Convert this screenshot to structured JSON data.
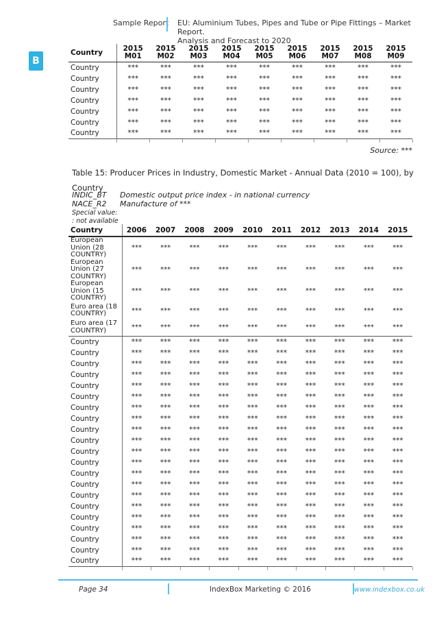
{
  "header": {
    "left_label": "Sample Report",
    "title_line1": "EU: Aluminium Tubes, Pipes and Tube or Pipe Fittings – Market Report.",
    "title_line2": "Analysis and Forecast to 2020"
  },
  "badge": {
    "letter": "B"
  },
  "monthly_table": {
    "header_label": "Country",
    "columns": [
      {
        "year": "2015",
        "period": "M01"
      },
      {
        "year": "2015",
        "period": "M02"
      },
      {
        "year": "2015",
        "period": "M03"
      },
      {
        "year": "2015",
        "period": "M04"
      },
      {
        "year": "2015",
        "period": "M05"
      },
      {
        "year": "2015",
        "period": "M06"
      },
      {
        "year": "2015",
        "period": "M07"
      },
      {
        "year": "2015",
        "period": "M08"
      },
      {
        "year": "2015",
        "period": "M09"
      }
    ],
    "row_labels": [
      "Country",
      "Country",
      "Country",
      "Country",
      "Country",
      "Country",
      "Country"
    ],
    "cell_value": "***",
    "source_note": "Source: ***"
  },
  "table15": {
    "title_line1": "Table 15: Producer Prices in Industry, Domestic Market - Annual Data (2010 = 100), by",
    "title_line2": "Country",
    "meta_rows": [
      {
        "code": "INDIC_BT",
        "description": "Domestic output price index - in national currency"
      },
      {
        "code": "NACE_R2",
        "description": "Manufacture of ***"
      }
    ],
    "special_value_label": "Special value:",
    "special_value_note": ": not available",
    "header_label": "Country",
    "years": [
      "2006",
      "2007",
      "2008",
      "2009",
      "2010",
      "2011",
      "2012",
      "2013",
      "2014",
      "2015"
    ],
    "region_row_labels": [
      "European Union (28 COUNTRY)",
      "European Union (27 COUNTRY)",
      "European Union (15 COUNTRY)",
      "Euro area (18 COUNTRY)",
      "Euro area (17 COUNTRY)"
    ],
    "country_row_labels": [
      "Country",
      "Country",
      "Country",
      "Country",
      "Country",
      "Country",
      "Country",
      "Country",
      "Country",
      "Country",
      "Country",
      "Country",
      "Country",
      "Country",
      "Country",
      "Country",
      "Country",
      "Country",
      "Country",
      "Country",
      "Country"
    ],
    "cell_value": "***"
  },
  "footer": {
    "page_label": "Page 34",
    "center_text": "IndexBox Marketing © 2016",
    "website": "www.indexbox.co.uk"
  },
  "colors": {
    "accent_blue": "#4cbbe8",
    "badge_blue": "#2fb2e4",
    "link_blue": "#3aa9d9"
  }
}
